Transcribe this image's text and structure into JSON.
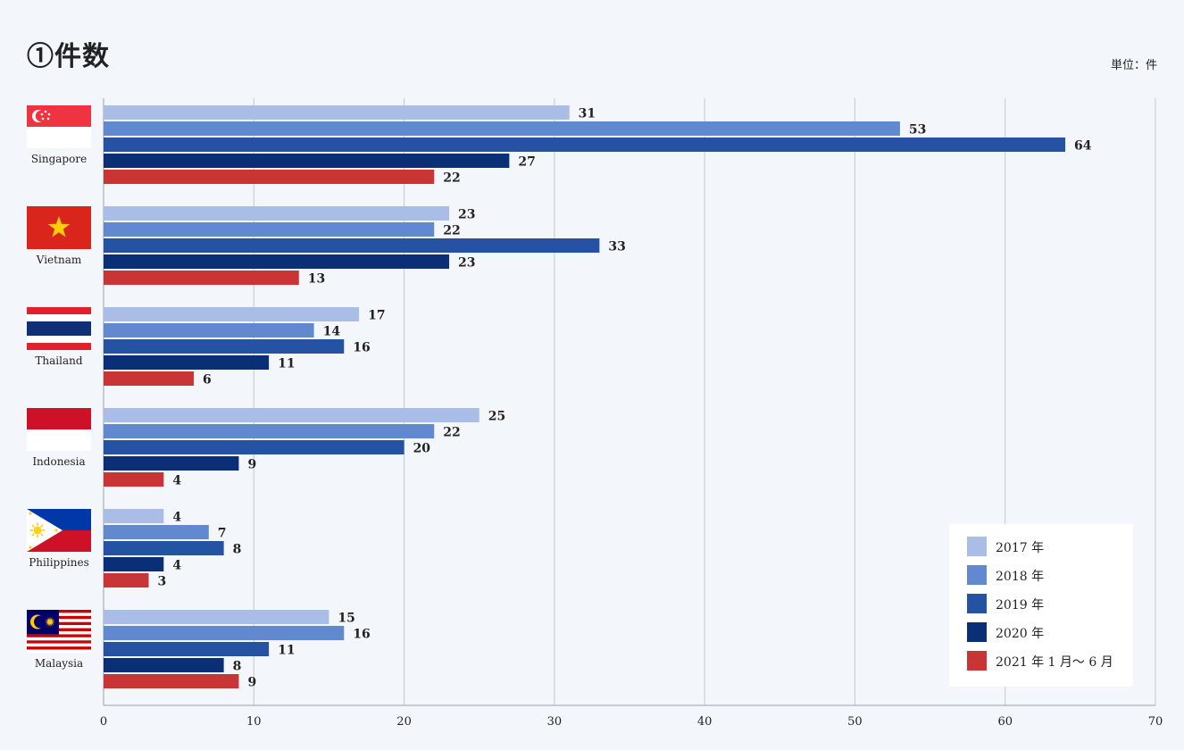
{
  "title": "①件数",
  "unit_label": "単位：件",
  "chart_data": {
    "type": "bar",
    "orientation": "horizontal",
    "categories": [
      "Singapore",
      "Vietnam",
      "Thailand",
      "Indonesia",
      "Philippines",
      "Malaysia"
    ],
    "series": [
      {
        "name": "2017 年",
        "color": "#a9bde6",
        "values": [
          31,
          23,
          17,
          25,
          4,
          15
        ]
      },
      {
        "name": "2018 年",
        "color": "#6189cf",
        "values": [
          53,
          22,
          14,
          22,
          7,
          16
        ]
      },
      {
        "name": "2019 年",
        "color": "#2552a3",
        "values": [
          64,
          33,
          16,
          20,
          8,
          11
        ]
      },
      {
        "name": "2020 年",
        "color": "#0a2f76",
        "values": [
          27,
          23,
          11,
          9,
          4,
          8
        ]
      },
      {
        "name": "2021 年 1 月～ 6 月",
        "color": "#c93434",
        "values": [
          22,
          13,
          6,
          4,
          3,
          9
        ]
      }
    ],
    "xlim": [
      0,
      70
    ],
    "xticks": [
      0,
      10,
      20,
      30,
      40,
      50,
      60,
      70
    ],
    "grid": true,
    "legend_position": "bottom-right",
    "xlabel": "",
    "ylabel": ""
  }
}
